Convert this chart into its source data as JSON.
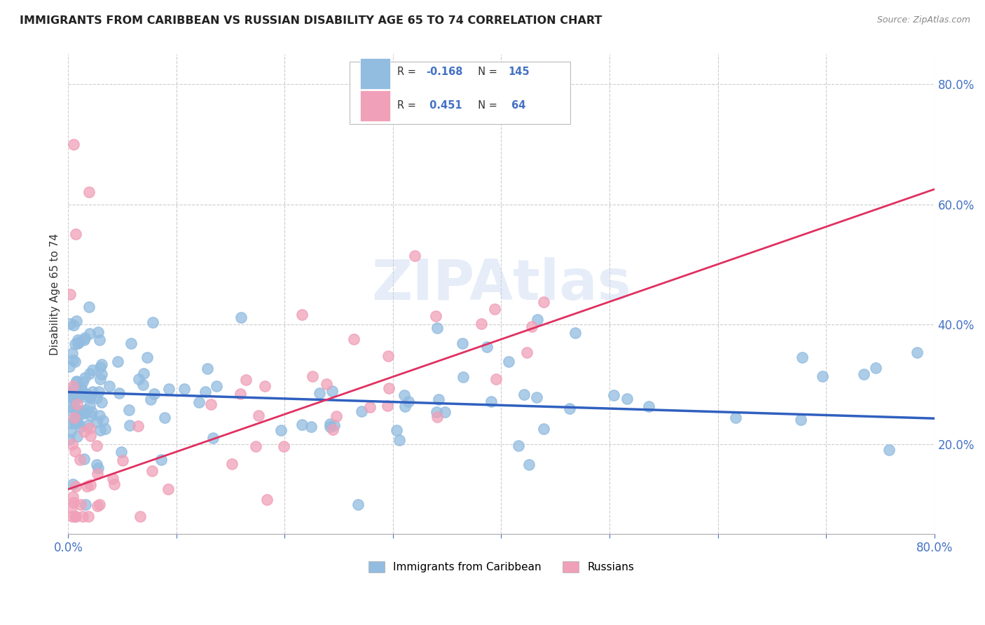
{
  "title": "IMMIGRANTS FROM CARIBBEAN VS RUSSIAN DISABILITY AGE 65 TO 74 CORRELATION CHART",
  "source": "Source: ZipAtlas.com",
  "ylabel": "Disability Age 65 to 74",
  "xlim": [
    0.0,
    0.8
  ],
  "ylim": [
    0.05,
    0.85
  ],
  "ytick_positions": [
    0.2,
    0.4,
    0.6,
    0.8
  ],
  "ytick_labels": [
    "20.0%",
    "40.0%",
    "60.0%",
    "80.0%"
  ],
  "caribbean_color": "#92bce0",
  "russian_color": "#f0a0b8",
  "caribbean_line_color": "#3060c0",
  "russian_line_color": "#e03060",
  "caribbean_N": 145,
  "russian_N": 64,
  "watermark": "ZIPAtlas",
  "background_color": "#ffffff",
  "grid_color": "#cccccc",
  "carib_line_start_y": 0.287,
  "carib_line_end_y": 0.243,
  "russ_line_start_y": 0.125,
  "russ_line_end_y": 0.625
}
